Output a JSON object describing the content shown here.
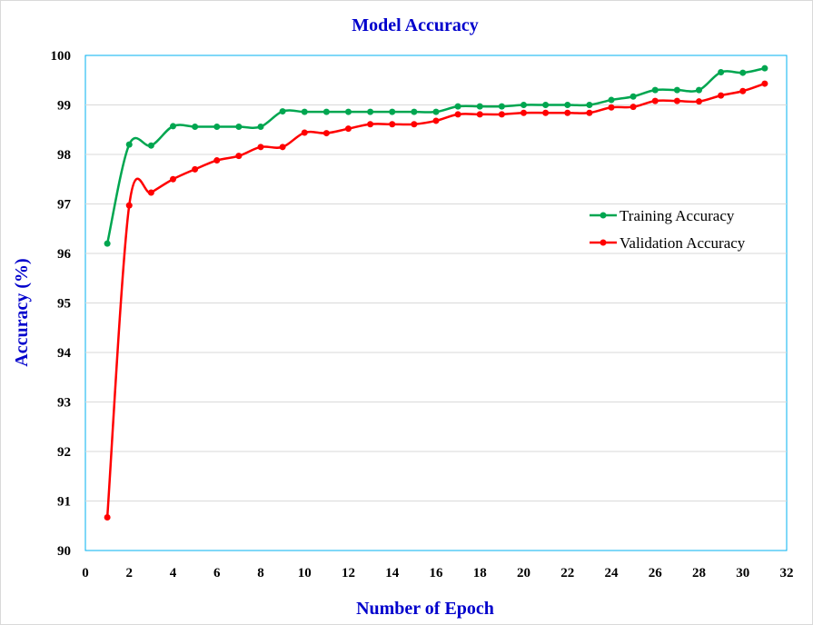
{
  "chart_data": {
    "type": "line",
    "title": "Model Accuracy",
    "xlabel": "Number of Epoch",
    "ylabel": "Accuracy (%)",
    "xlim": [
      0,
      32
    ],
    "ylim": [
      90,
      100
    ],
    "xticks": [
      0,
      2,
      4,
      6,
      8,
      10,
      12,
      14,
      16,
      18,
      20,
      22,
      24,
      26,
      28,
      30,
      32
    ],
    "yticks": [
      90,
      91,
      92,
      93,
      94,
      95,
      96,
      97,
      98,
      99,
      100
    ],
    "grid": "horizontal",
    "legend_position": "right",
    "x": [
      1,
      2,
      3,
      4,
      5,
      6,
      7,
      8,
      9,
      10,
      11,
      12,
      13,
      14,
      15,
      16,
      17,
      18,
      19,
      20,
      21,
      22,
      23,
      24,
      25,
      26,
      27,
      28,
      29,
      30,
      31
    ],
    "series": [
      {
        "name": "Training Accuracy",
        "color": "#00a650",
        "values": [
          96.2,
          98.2,
          98.18,
          98.57,
          98.56,
          98.56,
          98.56,
          98.56,
          98.87,
          98.86,
          98.86,
          98.86,
          98.86,
          98.86,
          98.86,
          98.86,
          98.97,
          98.97,
          98.97,
          99.0,
          99.0,
          99.0,
          99.0,
          99.1,
          99.17,
          99.3,
          99.3,
          99.3,
          99.66,
          99.65,
          99.74
        ]
      },
      {
        "name": "Validation Accuracy",
        "color": "#ff0000",
        "values": [
          90.67,
          96.97,
          97.23,
          97.5,
          97.7,
          97.88,
          97.97,
          98.15,
          98.15,
          98.44,
          98.43,
          98.52,
          98.61,
          98.61,
          98.61,
          98.68,
          98.81,
          98.81,
          98.81,
          98.84,
          98.84,
          98.84,
          98.84,
          98.95,
          98.96,
          99.08,
          99.08,
          99.07,
          99.19,
          99.28,
          99.43
        ]
      }
    ]
  }
}
